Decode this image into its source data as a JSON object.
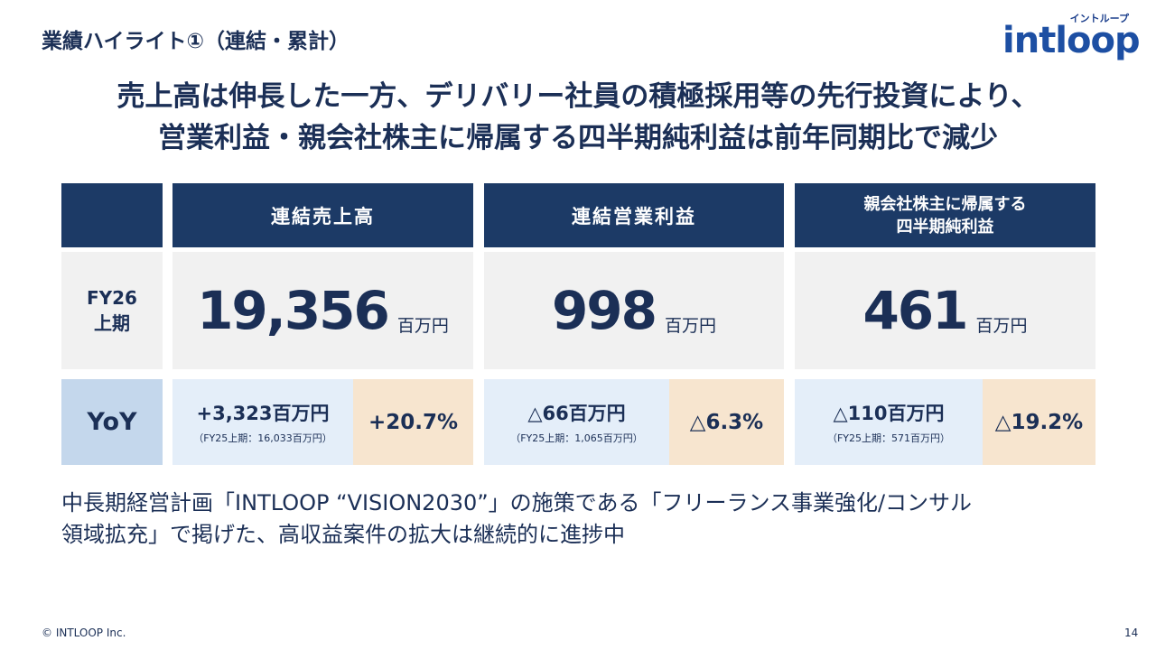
{
  "header": {
    "section_title": "業績ハイライト①（連結・累計）",
    "logo_kana": "イントループ",
    "logo_text": "intloop"
  },
  "headline": {
    "line1": "売上高は伸長した一方、デリバリー社員の積極採用等の先行投資により、",
    "line2": "営業利益・親会社株主に帰属する四半期純利益は前年同期比で減少"
  },
  "table": {
    "columns": [
      {
        "header_lines": [
          "連結売上高"
        ],
        "value": "19,356",
        "unit": "百万円",
        "diff": "+3,323百万円",
        "prev": "（FY25上期：16,033百万円）",
        "pct": "+20.7%"
      },
      {
        "header_lines": [
          "連結営業利益"
        ],
        "value": "998",
        "unit": "百万円",
        "diff": "△66百万円",
        "prev": "（FY25上期：1,065百万円）",
        "pct": "△6.3%"
      },
      {
        "header_lines": [
          "親会社株主に帰属する",
          "四半期純利益"
        ],
        "value": "461",
        "unit": "百万円",
        "diff": "△110百万円",
        "prev": "（FY25上期：571百万円）",
        "pct": "△19.2%"
      }
    ],
    "row_label_line1": "FY26",
    "row_label_line2": "上期",
    "yoy_label": "YoY"
  },
  "body": {
    "line1": "中長期経営計画「INTLOOP “VISION2030”」の施策である「フリーランス事業強化/コンサル",
    "line2": "領域拡充」で掲げた、高収益案件の拡大は継続的に進捗中"
  },
  "footer": {
    "copyright": "© INTLOOP Inc.",
    "page_number": "14"
  }
}
